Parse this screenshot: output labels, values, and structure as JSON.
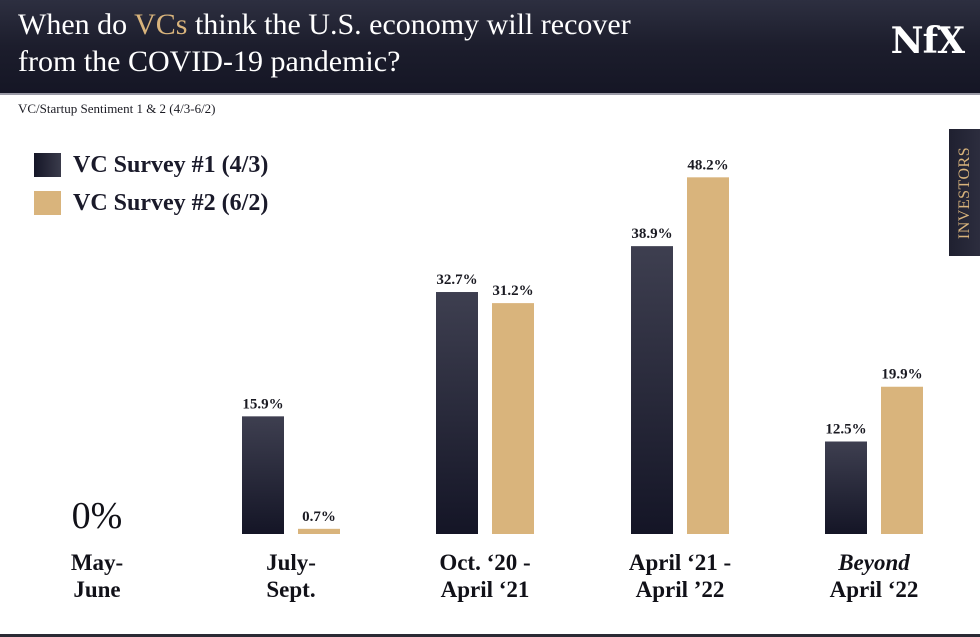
{
  "header": {
    "title_pre": "When do ",
    "title_highlight": "VCs",
    "title_post": " think the U.S. economy will recover",
    "title_line2": "from the COVID-19 pandemic?",
    "logo": "NfX"
  },
  "side_tab": {
    "label": "INVESTORS"
  },
  "colors": {
    "series1": "#1a1b2c",
    "series2": "#d9b47c",
    "header_bg": "#1c1d2c",
    "accent": "#d9b47c"
  },
  "chart_data": {
    "type": "bar",
    "title": "When do VCs think the U.S. economy will recover from the COVID-19 pandemic?",
    "subtitle": "VC/Startup Sentiment 1 & 2 (4/3-6/2)",
    "categories": [
      {
        "line1": "May-",
        "line2": "June",
        "italic_line1": false
      },
      {
        "line1": "July-",
        "line2": "Sept.",
        "italic_line1": false
      },
      {
        "line1": "Oct. ‘20 -",
        "line2": "April ‘21",
        "italic_line1": false
      },
      {
        "line1": "April ‘21 -",
        "line2": "April ’22",
        "italic_line1": false
      },
      {
        "line1": "Beyond",
        "line2": "April ‘22",
        "italic_line1": true
      }
    ],
    "series": [
      {
        "name": "VC Survey #1 (4/3)",
        "values": [
          0,
          15.9,
          32.7,
          38.9,
          12.5
        ],
        "labels": [
          "",
          "15.9%",
          "32.7%",
          "38.9%",
          "12.5%"
        ]
      },
      {
        "name": "VC Survey #2 (6/2)",
        "values": [
          0,
          0.7,
          31.2,
          48.2,
          19.9
        ],
        "labels": [
          "",
          "0.7%",
          "31.2%",
          "48.2%",
          "19.9%"
        ]
      }
    ],
    "zero_label": "0%",
    "ylim": [
      0,
      50
    ],
    "grid": false,
    "legend_position": "top-left"
  }
}
